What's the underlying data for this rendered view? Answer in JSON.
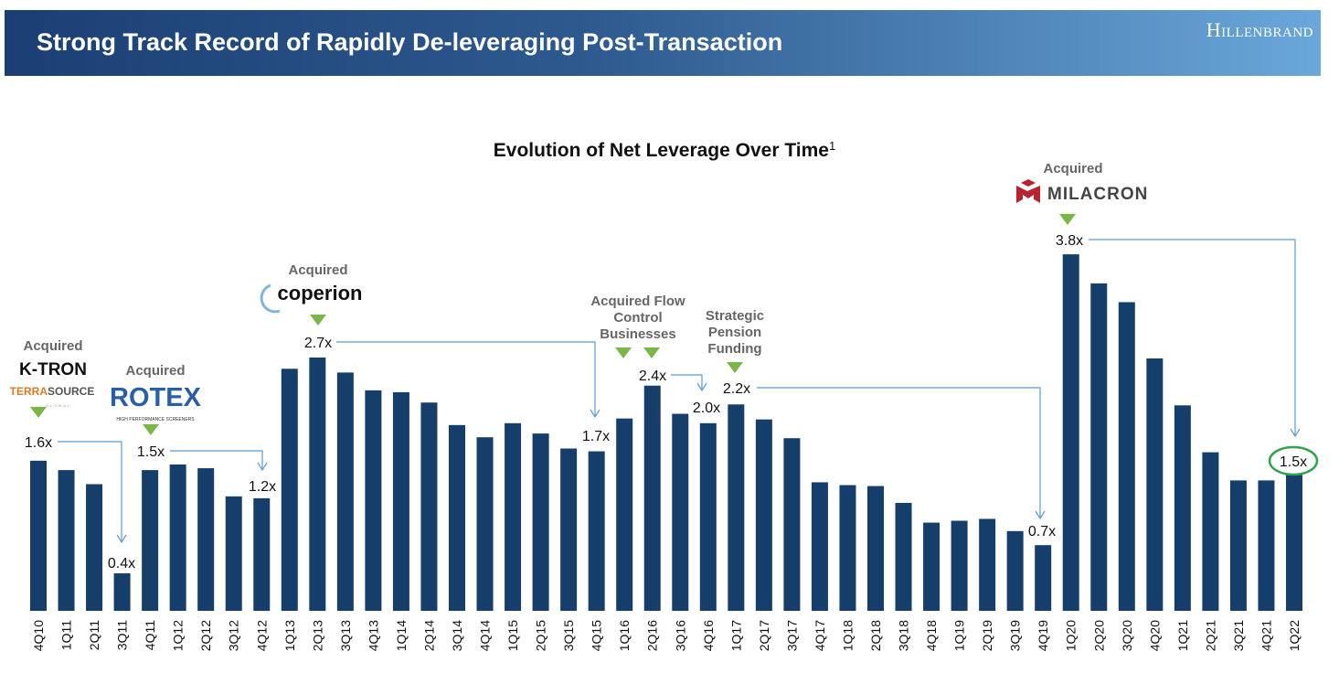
{
  "header": {
    "title": "Strong Track Record of Rapidly De-leveraging Post-Transaction",
    "brand": "Hillenbrand"
  },
  "chart_data": {
    "type": "bar",
    "title": "Evolution of Net Leverage Over Time",
    "title_footnote": "1",
    "xlabel": "",
    "ylabel": "",
    "ylim": [
      0,
      4.0
    ],
    "grid": false,
    "bar_color": "#163e6b",
    "highlight_color": "#7ab648",
    "connector_color": "#5b9bd5",
    "categories": [
      "4Q10",
      "1Q11",
      "2Q11",
      "3Q11",
      "4Q11",
      "1Q12",
      "2Q12",
      "3Q12",
      "4Q12",
      "1Q13",
      "2Q13",
      "3Q13",
      "4Q13",
      "1Q14",
      "2Q14",
      "3Q14",
      "4Q14",
      "1Q15",
      "2Q15",
      "3Q15",
      "4Q15",
      "1Q16",
      "2Q16",
      "3Q16",
      "4Q16",
      "1Q17",
      "2Q17",
      "3Q17",
      "4Q17",
      "1Q18",
      "2Q18",
      "3Q18",
      "4Q18",
      "1Q19",
      "2Q19",
      "3Q19",
      "4Q19",
      "1Q20",
      "2Q20",
      "3Q20",
      "4Q20",
      "1Q21",
      "2Q21",
      "3Q21",
      "4Q21",
      "1Q22"
    ],
    "values": [
      1.6,
      1.5,
      1.35,
      0.4,
      1.5,
      1.56,
      1.52,
      1.22,
      1.2,
      2.58,
      2.7,
      2.54,
      2.35,
      2.33,
      2.22,
      1.98,
      1.85,
      2.0,
      1.89,
      1.73,
      1.7,
      2.05,
      2.4,
      2.1,
      2.0,
      2.2,
      2.04,
      1.84,
      1.37,
      1.34,
      1.33,
      1.15,
      0.94,
      0.96,
      0.98,
      0.85,
      0.7,
      3.8,
      3.49,
      3.29,
      2.69,
      2.19,
      1.69,
      1.39,
      1.39,
      1.45
    ],
    "data_labels": {
      "4Q10": "1.6x",
      "3Q11": "0.4x",
      "4Q11": "1.5x",
      "4Q12": "1.2x",
      "2Q13": "2.7x",
      "4Q15": "1.7x",
      "2Q16": "2.4x",
      "4Q16": "2.0x",
      "1Q17": "2.2x",
      "4Q19": "0.7x",
      "1Q20": "3.8x",
      "1Q22": "1.5x"
    },
    "annotations": {
      "ktron": {
        "label": "Acquired",
        "logo1": "K-TRON",
        "logo2a": "TERRA",
        "logo2b": "SOURCE",
        "logo2c": "GLOBAL"
      },
      "rotex": {
        "label": "Acquired",
        "logo": "ROTEX",
        "tagline": "HIGH PERFORMANCE SCREENERS"
      },
      "coperion": {
        "label": "Acquired",
        "logo": "coperion"
      },
      "flow": {
        "line1": "Acquired Flow",
        "line2": "Control",
        "line3": "Businesses"
      },
      "pension": {
        "line1": "Strategic",
        "line2": "Pension",
        "line3": "Funding"
      },
      "milacron": {
        "label": "Acquired",
        "logo": "MILACRON"
      }
    }
  }
}
